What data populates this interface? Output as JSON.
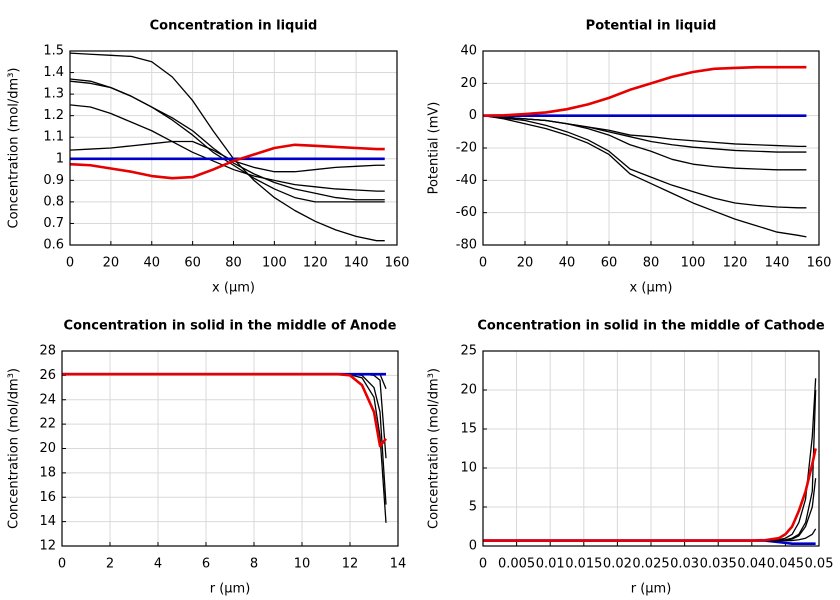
{
  "chart_data": [
    {
      "type": "line",
      "title": "Concentration in liquid",
      "xlabel": "x (µm)",
      "ylabel": "Concentration (mol/dm³)",
      "x": [
        0,
        10,
        20,
        30,
        40,
        50,
        60,
        70,
        80,
        90,
        100,
        110,
        120,
        130,
        140,
        150,
        154
      ],
      "xlim": [
        0,
        160
      ],
      "xticks": [
        0,
        20,
        40,
        60,
        80,
        100,
        120,
        140,
        160
      ],
      "ylim": [
        0.6,
        1.5
      ],
      "yticks": [
        0.6,
        0.7,
        0.8,
        0.9,
        1,
        1.1,
        1.2,
        1.3,
        1.4,
        1.5
      ],
      "grid": true,
      "series": [
        {
          "color": "#000000",
          "values": [
            1.49,
            1.485,
            1.48,
            1.475,
            1.45,
            1.38,
            1.27,
            1.13,
            1.0,
            0.9,
            0.82,
            0.76,
            0.71,
            0.67,
            0.64,
            0.62,
            0.62
          ]
        },
        {
          "color": "#000000",
          "values": [
            1.37,
            1.36,
            1.33,
            1.29,
            1.24,
            1.18,
            1.11,
            1.03,
            0.97,
            0.91,
            0.86,
            0.82,
            0.8,
            0.8,
            0.8,
            0.8,
            0.8
          ]
        },
        {
          "color": "#000000",
          "values": [
            1.36,
            1.35,
            1.33,
            1.29,
            1.24,
            1.19,
            1.13,
            1.05,
            0.98,
            0.93,
            0.89,
            0.86,
            0.84,
            0.82,
            0.81,
            0.81,
            0.81
          ]
        },
        {
          "color": "#000000",
          "values": [
            1.25,
            1.24,
            1.21,
            1.17,
            1.13,
            1.08,
            1.03,
            0.99,
            0.95,
            0.92,
            0.9,
            0.88,
            0.87,
            0.86,
            0.855,
            0.85,
            0.85
          ]
        },
        {
          "color": "#000000",
          "values": [
            1.04,
            1.045,
            1.05,
            1.06,
            1.07,
            1.08,
            1.08,
            1.04,
            0.99,
            0.96,
            0.94,
            0.94,
            0.95,
            0.96,
            0.965,
            0.97,
            0.97
          ]
        },
        {
          "color": "#0000cc",
          "values": [
            1,
            1,
            1,
            1,
            1,
            1,
            1,
            1,
            1,
            1,
            1,
            1,
            1,
            1,
            1,
            1,
            1
          ]
        },
        {
          "color": "#e60000",
          "values": [
            0.975,
            0.97,
            0.955,
            0.94,
            0.92,
            0.91,
            0.915,
            0.95,
            0.99,
            1.02,
            1.05,
            1.065,
            1.06,
            1.055,
            1.05,
            1.045,
            1.045
          ]
        }
      ]
    },
    {
      "type": "line",
      "title": "Potential in liquid",
      "xlabel": "x (µm)",
      "ylabel": "Potential (mV)",
      "x": [
        0,
        10,
        20,
        30,
        40,
        50,
        60,
        70,
        80,
        90,
        100,
        110,
        120,
        130,
        140,
        150,
        154
      ],
      "xlim": [
        0,
        160
      ],
      "xticks": [
        0,
        20,
        40,
        60,
        80,
        100,
        120,
        140,
        160
      ],
      "ylim": [
        -80,
        40
      ],
      "yticks": [
        -80,
        -60,
        -40,
        -20,
        0,
        20,
        40
      ],
      "grid": true,
      "series": [
        {
          "color": "#000000",
          "values": [
            0,
            -1,
            -2,
            -3,
            -5,
            -7,
            -9,
            -12,
            -13,
            -14.5,
            -15.5,
            -16.5,
            -17.5,
            -18,
            -18.5,
            -19,
            -19
          ]
        },
        {
          "color": "#000000",
          "values": [
            0,
            -1,
            -2,
            -3,
            -5,
            -7,
            -10,
            -13,
            -16,
            -18,
            -19.5,
            -20.5,
            -21.5,
            -22,
            -22.5,
            -22.5,
            -22.5
          ]
        },
        {
          "color": "#000000",
          "values": [
            0,
            -1,
            -2,
            -3,
            -5,
            -8,
            -12,
            -18,
            -22,
            -27,
            -30,
            -31.5,
            -32.5,
            -33,
            -33.5,
            -33.5,
            -33.5
          ]
        },
        {
          "color": "#000000",
          "values": [
            0,
            -1.5,
            -3,
            -6,
            -10,
            -15,
            -22,
            -33,
            -38,
            -43,
            -47,
            -51,
            -54,
            -55.5,
            -56.5,
            -57,
            -57
          ]
        },
        {
          "color": "#000000",
          "values": [
            0,
            -2,
            -5,
            -8,
            -12,
            -17,
            -24,
            -36,
            -42,
            -48,
            -54,
            -59,
            -64,
            -68,
            -72,
            -74,
            -75
          ]
        },
        {
          "color": "#0000cc",
          "values": [
            0,
            0,
            0,
            0,
            0,
            0,
            0,
            0,
            0,
            0,
            0,
            0,
            0,
            0,
            0,
            0,
            0
          ]
        },
        {
          "color": "#e60000",
          "values": [
            0,
            0.2,
            1,
            2,
            4,
            7,
            11,
            16,
            20,
            24,
            27,
            29,
            29.5,
            30,
            30,
            30,
            30
          ]
        }
      ]
    },
    {
      "type": "line",
      "title": "Concentration in solid in the middle of Anode",
      "xlabel": "r (µm)",
      "ylabel": "Concentration (mol/dm³)",
      "x": [
        0,
        2,
        4,
        6,
        8,
        10,
        11,
        11.5,
        12,
        12.5,
        13,
        13.25,
        13.5
      ],
      "xlim": [
        0,
        14
      ],
      "xticks": [
        0,
        2,
        4,
        6,
        8,
        10,
        12,
        14
      ],
      "ylim": [
        12,
        28
      ],
      "yticks": [
        12,
        14,
        16,
        18,
        20,
        22,
        24,
        26,
        28
      ],
      "grid": true,
      "series": [
        {
          "color": "#000000",
          "values": [
            26.1,
            26.1,
            26.1,
            26.1,
            26.1,
            26.1,
            26.1,
            26.1,
            26.1,
            26.1,
            26.1,
            26.1,
            24.9
          ]
        },
        {
          "color": "#000000",
          "values": [
            26.1,
            26.1,
            26.1,
            26.1,
            26.1,
            26.1,
            26.1,
            26.1,
            26.1,
            26.1,
            26.0,
            25.6,
            19.2
          ]
        },
        {
          "color": "#000000",
          "values": [
            26.1,
            26.1,
            26.1,
            26.1,
            26.1,
            26.1,
            26.1,
            26.1,
            26.1,
            26.0,
            25.0,
            23,
            15.4
          ]
        },
        {
          "color": "#000000",
          "values": [
            26.1,
            26.1,
            26.1,
            26.1,
            26.1,
            26.1,
            26.1,
            26.1,
            26.05,
            25.8,
            24.2,
            21,
            13.9
          ]
        },
        {
          "color": "#0000cc",
          "values": [
            26.1,
            26.1,
            26.1,
            26.1,
            26.1,
            26.1,
            26.1,
            26.1,
            26.1,
            26.1,
            26.1,
            26.1,
            26.1
          ]
        },
        {
          "color": "#e60000",
          "values": [
            26.1,
            26.1,
            26.1,
            26.1,
            26.1,
            26.1,
            26.1,
            26.1,
            26.0,
            25.2,
            23,
            20.2,
            20.8
          ]
        }
      ]
    },
    {
      "type": "line",
      "title": "Concentration in solid in the middle of Cathode",
      "xlabel": "r (µm)",
      "ylabel": "Concentration (mol/dm³)",
      "x": [
        0,
        0.01,
        0.02,
        0.03,
        0.04,
        0.042,
        0.044,
        0.045,
        0.046,
        0.047,
        0.048,
        0.049,
        0.0495
      ],
      "xlim": [
        0,
        0.05
      ],
      "xticks": [
        0,
        0.005,
        0.01,
        0.015,
        0.02,
        0.025,
        0.03,
        0.035,
        0.04,
        0.045,
        0.05
      ],
      "ylim": [
        0,
        25
      ],
      "yticks": [
        0,
        5,
        10,
        15,
        20,
        25
      ],
      "grid": true,
      "series": [
        {
          "color": "#0000cc",
          "values": [
            0.7,
            0.7,
            0.7,
            0.7,
            0.7,
            0.7,
            0.5,
            0.4,
            0.3,
            0.3,
            0.3,
            0.3,
            0.3
          ]
        },
        {
          "color": "#000000",
          "values": [
            0.7,
            0.7,
            0.7,
            0.7,
            0.7,
            0.7,
            0.8,
            1.0,
            1.5,
            3,
            6,
            14,
            21.5
          ]
        },
        {
          "color": "#000000",
          "values": [
            0.7,
            0.7,
            0.7,
            0.7,
            0.7,
            0.7,
            0.7,
            0.8,
            1.0,
            1.5,
            3,
            7,
            20
          ]
        },
        {
          "color": "#000000",
          "values": [
            0.7,
            0.7,
            0.7,
            0.7,
            0.7,
            0.7,
            0.7,
            0.75,
            0.9,
            1.3,
            2.5,
            5,
            8.7
          ]
        },
        {
          "color": "#000000",
          "values": [
            0.7,
            0.7,
            0.7,
            0.7,
            0.7,
            0.7,
            0.7,
            0.7,
            0.7,
            0.8,
            1.0,
            1.5,
            2.2
          ]
        },
        {
          "color": "#e60000",
          "values": [
            0.7,
            0.7,
            0.7,
            0.7,
            0.7,
            0.75,
            1.0,
            1.5,
            2.5,
            4.5,
            7,
            10.5,
            12.5
          ]
        }
      ]
    }
  ]
}
